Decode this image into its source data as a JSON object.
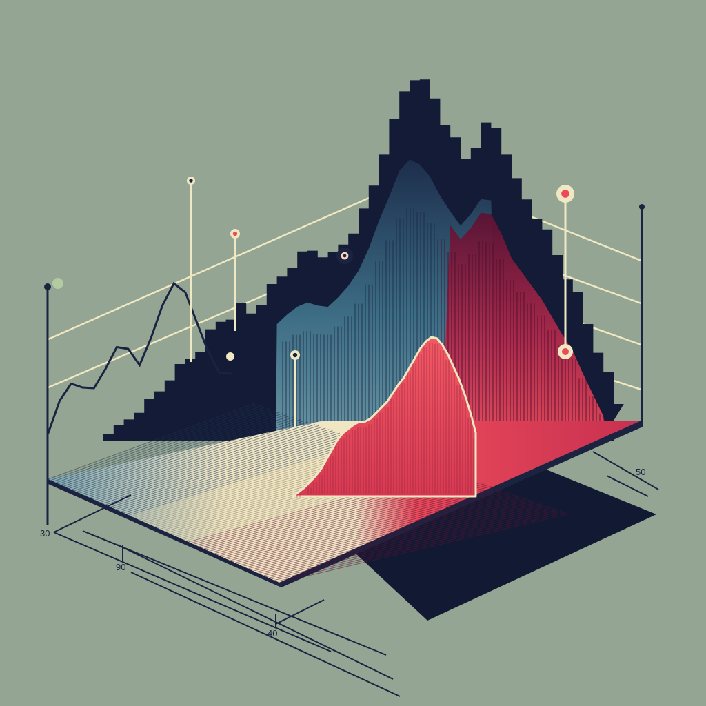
{
  "chart_data": {
    "type": "area",
    "style": "isometric-3d",
    "title": "",
    "xlabel": "",
    "ylabel": "",
    "tick_labels": [
      "30",
      "90",
      "40",
      "50"
    ],
    "background": "#94a593",
    "colors": {
      "back_ridge": "#131b36",
      "front_low": "#f1e6c4",
      "front_mid": "#4a7f95",
      "front_high": "#ea4a5a",
      "front_deep": "#5a1233",
      "floor": "#1b2340",
      "axis": "#1b2340",
      "guide": "#f0e8c2",
      "marker_fill": "#f6d6c3",
      "marker_accent": "#ea4a5a",
      "marker_green": "#b9d4a6"
    },
    "back_ridge_profile": [
      0.05,
      0.06,
      0.1,
      0.14,
      0.17,
      0.22,
      0.28,
      0.32,
      0.36,
      0.4,
      0.47,
      0.52,
      0.54,
      0.58,
      0.55,
      0.6,
      0.66,
      0.71,
      0.76,
      0.8,
      0.82,
      0.8,
      0.79,
      0.84,
      0.9,
      0.98,
      1.1,
      1.25,
      1.38,
      1.52,
      1.58,
      1.55,
      1.48,
      1.37,
      1.28,
      1.2,
      1.26,
      1.34,
      1.33,
      1.22,
      1.08,
      1.0,
      0.92,
      0.84,
      0.74,
      0.64,
      0.55,
      0.42,
      0.3,
      0.18,
      0.05
    ],
    "front_ridge_profile": [
      0.0,
      0.02,
      0.04,
      0.07,
      0.1,
      0.14,
      0.2,
      0.26,
      0.32,
      0.36,
      0.38,
      0.4,
      0.41,
      0.4,
      0.41,
      0.44,
      0.47,
      0.5,
      0.55,
      0.6,
      0.64,
      0.7,
      0.76,
      0.82,
      0.86,
      0.88,
      0.86,
      0.8,
      0.72,
      0.62,
      0.52,
      0.4,
      0.26,
      0.1
    ],
    "curve_series": [
      0.0,
      0.3,
      0.45,
      0.4,
      0.38,
      0.55,
      0.75,
      0.72,
      0.55,
      0.8,
      1.1,
      1.3,
      1.2,
      0.9,
      0.6,
      0.38,
      0.36
    ],
    "markers": [
      {
        "name": "marker-1",
        "style": "plain"
      },
      {
        "name": "marker-2",
        "style": "accent"
      },
      {
        "name": "marker-3",
        "style": "large-dark"
      },
      {
        "name": "marker-4",
        "style": "plain"
      },
      {
        "name": "marker-5",
        "style": "accent-large"
      },
      {
        "name": "marker-6",
        "style": "accent"
      }
    ]
  }
}
